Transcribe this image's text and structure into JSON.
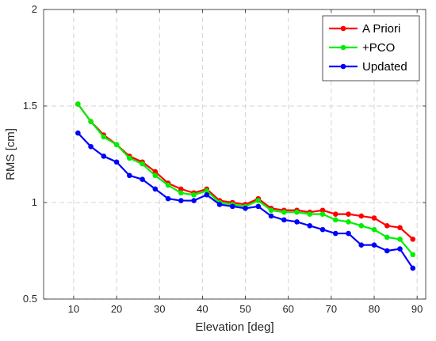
{
  "chart_data": {
    "type": "line",
    "xlabel": "Elevation [deg]",
    "ylabel": "RMS [cm]",
    "xlim": [
      3,
      92
    ],
    "ylim": [
      0.5,
      2
    ],
    "xticks": [
      10,
      20,
      30,
      40,
      50,
      60,
      70,
      80,
      90
    ],
    "yticks": [
      0.5,
      1,
      1.5,
      2
    ],
    "ytick_labels": [
      "0.5",
      "1",
      "1.5",
      "2"
    ],
    "xgrid": true,
    "ygrid": true,
    "legend_position": "top-right",
    "x": [
      11,
      14,
      17,
      20,
      23,
      26,
      29,
      32,
      35,
      38,
      41,
      44,
      47,
      50,
      53,
      56,
      59,
      62,
      65,
      68,
      71,
      74,
      77,
      80,
      83,
      86,
      89
    ],
    "series": [
      {
        "name": "A Priori",
        "color": "#ff0000",
        "values": [
          1.51,
          1.42,
          1.35,
          1.3,
          1.24,
          1.21,
          1.16,
          1.1,
          1.07,
          1.05,
          1.07,
          1.01,
          1.0,
          0.99,
          1.02,
          0.97,
          0.96,
          0.96,
          0.95,
          0.96,
          0.94,
          0.94,
          0.93,
          0.92,
          0.88,
          0.87,
          0.81
        ]
      },
      {
        "name": "+PCO",
        "color": "#00ee00",
        "values": [
          1.51,
          1.42,
          1.34,
          1.3,
          1.23,
          1.2,
          1.14,
          1.09,
          1.05,
          1.04,
          1.06,
          1.0,
          0.99,
          0.98,
          1.01,
          0.96,
          0.95,
          0.95,
          0.94,
          0.94,
          0.91,
          0.9,
          0.88,
          0.86,
          0.82,
          0.81,
          0.73
        ]
      },
      {
        "name": "Updated",
        "color": "#0000ff",
        "values": [
          1.36,
          1.29,
          1.24,
          1.21,
          1.14,
          1.12,
          1.07,
          1.02,
          1.01,
          1.01,
          1.04,
          0.99,
          0.98,
          0.97,
          0.98,
          0.93,
          0.91,
          0.9,
          0.88,
          0.86,
          0.84,
          0.84,
          0.78,
          0.78,
          0.75,
          0.76,
          0.66
        ]
      }
    ]
  }
}
